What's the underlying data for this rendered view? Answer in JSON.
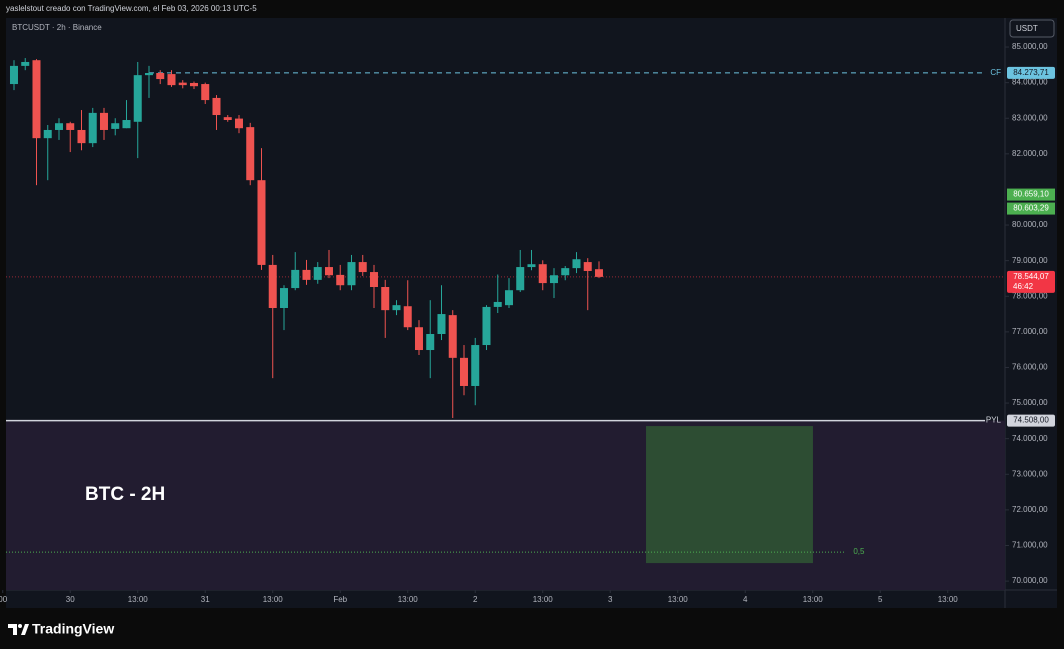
{
  "header": "yaslelstout creado con TradingView.com, el Feb 03, 2026 00:13 UTC-5",
  "footer": "TradingView",
  "chart_data": {
    "type": "candlestick",
    "title": "BTCUSDT · 2h · Binance",
    "currency": "USDT",
    "annotation": "BTC - 2H",
    "up_color": "#26a69a",
    "down_color": "#ef5350",
    "grid": false,
    "open": [
      83960,
      84470,
      84630,
      82440,
      82670,
      82860,
      82670,
      82300,
      83150,
      82700,
      82720,
      82900,
      84210,
      84270,
      84240,
      84000,
      83990,
      83960,
      83570,
      83030,
      82990,
      82750,
      81260,
      78880,
      77670,
      78230,
      78740,
      78460,
      78820,
      78600,
      78310,
      78960,
      78680,
      78260,
      77610,
      77720,
      77130,
      76490,
      76940,
      77470,
      76270,
      75480,
      76630,
      77700,
      77750,
      78170,
      78820,
      78900,
      78370,
      78590,
      78790,
      78960,
      78760
    ],
    "high": [
      84630,
      84690,
      84660,
      82810,
      83000,
      82900,
      83230,
      83290,
      83290,
      83000,
      83510,
      84580,
      84470,
      84350,
      84350,
      84070,
      84030,
      84000,
      83650,
      83090,
      83090,
      82870,
      82160,
      79160,
      78310,
      79240,
      79020,
      78960,
      79300,
      78880,
      79160,
      79160,
      78880,
      78460,
      77890,
      78450,
      77330,
      77890,
      78310,
      77610,
      76630,
      76830,
      77750,
      78610,
      78510,
      79300,
      79300,
      79010,
      78790,
      78850,
      79240,
      79070,
      78980
    ],
    "low": [
      83790,
      84350,
      81120,
      81260,
      82390,
      82050,
      82100,
      82190,
      82390,
      82520,
      82720,
      81880,
      83570,
      83960,
      83880,
      83840,
      83820,
      83400,
      82670,
      82900,
      82580,
      81120,
      78740,
      75700,
      77050,
      78170,
      78320,
      78350,
      78510,
      78170,
      78170,
      78570,
      77670,
      76830,
      77470,
      77050,
      76350,
      75700,
      76770,
      74580,
      75220,
      74940,
      76490,
      77530,
      77670,
      78120,
      78730,
      78170,
      77950,
      78450,
      78650,
      77610,
      78510
    ],
    "close": [
      84470,
      84580,
      82440,
      82670,
      82860,
      82670,
      82300,
      83150,
      82670,
      82860,
      82950,
      84210,
      84270,
      84100,
      83930,
      83930,
      83900,
      83510,
      83090,
      82950,
      82720,
      81260,
      78880,
      77670,
      78230,
      78740,
      78460,
      78820,
      78590,
      78310,
      78960,
      78680,
      78260,
      77610,
      77750,
      77130,
      76490,
      76940,
      77500,
      76270,
      75480,
      76630,
      77700,
      77840,
      78170,
      78820,
      78900,
      78370,
      78590,
      78790,
      79040,
      78710,
      78544.07
    ],
    "xlim": [
      -0.71,
      88.09
    ],
    "xticks": [
      {
        "value": -1,
        "label": "00"
      },
      {
        "value": 5,
        "label": "30"
      },
      {
        "value": 11,
        "label": "13:00"
      },
      {
        "value": 17,
        "label": "31"
      },
      {
        "value": 23,
        "label": "13:00"
      },
      {
        "value": 29,
        "label": "Feb"
      },
      {
        "value": 35,
        "label": "13:00"
      },
      {
        "value": 41,
        "label": "2"
      },
      {
        "value": 47,
        "label": "13:00"
      },
      {
        "value": 53,
        "label": "3"
      },
      {
        "value": 59,
        "label": "13:00"
      },
      {
        "value": 65,
        "label": "4"
      },
      {
        "value": 71,
        "label": "13:00"
      },
      {
        "value": 77,
        "label": "5"
      },
      {
        "value": 83,
        "label": "13:00"
      }
    ],
    "ylim": [
      69750,
      85815
    ],
    "yticks": [
      {
        "value": 85000,
        "label": "85.000,00"
      },
      {
        "value": 84000,
        "label": "84.000,00"
      },
      {
        "value": 83000,
        "label": "83.000,00"
      },
      {
        "value": 82000,
        "label": "82.000,00"
      },
      {
        "value": 80000,
        "label": "80.000,00"
      },
      {
        "value": 79000,
        "label": "79.000,00"
      },
      {
        "value": 78000,
        "label": "78.000,00"
      },
      {
        "value": 77000,
        "label": "77.000,00"
      },
      {
        "value": 76000,
        "label": "76.000,00"
      },
      {
        "value": 75000,
        "label": "75.000,00"
      },
      {
        "value": 74000,
        "label": "74.000,00"
      },
      {
        "value": 73000,
        "label": "73.000,00"
      },
      {
        "value": 72000,
        "label": "72.000,00"
      },
      {
        "value": 71000,
        "label": "71.000,00"
      },
      {
        "value": 70000,
        "label": "70.000,00"
      }
    ],
    "levels": [
      {
        "name": "CF",
        "value": 84273.71,
        "label": "84.273,71",
        "start": 12,
        "style": "dashed",
        "color": "#6cc3e0"
      },
      {
        "name": "PYL",
        "value": 74508,
        "label": "74.508,00",
        "style": "solid",
        "color": "#d1d4dc"
      },
      {
        "name": "0,5",
        "value": 70815,
        "end": 73.9,
        "style": "dotted",
        "color": "#4caf50"
      }
    ],
    "price_labels": [
      {
        "value": 80659.1,
        "label": "80.659,10"
      },
      {
        "value": 80603.29,
        "label": "80.603,29"
      }
    ],
    "price_label_color": "#4caf50",
    "last_price": {
      "value": 78544.07,
      "label": "78.544,07",
      "countdown": "46:42",
      "color": "#f23645"
    },
    "zone": {
      "x": [
        56.18,
        71.02
      ],
      "y": [
        70506,
        74354
      ],
      "color": "#2f5634"
    },
    "shade_color": "#221c30"
  }
}
